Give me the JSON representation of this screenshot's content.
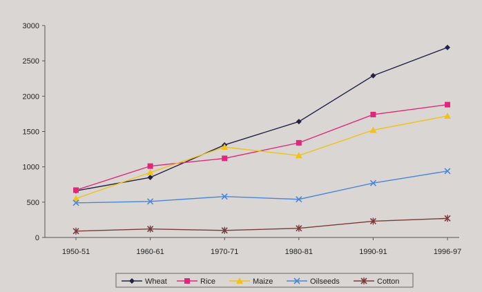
{
  "chart_data": {
    "type": "line",
    "categories": [
      "1950-51",
      "1960-61",
      "1970-71",
      "1980-81",
      "1990-91",
      "1996-97"
    ],
    "ylim": [
      0,
      3000
    ],
    "yticks": [
      0,
      500,
      1000,
      1500,
      2000,
      2500,
      3000
    ],
    "grid": false,
    "legend_position": "bottom",
    "series": [
      {
        "name": "Wheat",
        "color": "#222244",
        "marker": "diamond",
        "values": [
          660,
          850,
          1310,
          1640,
          2290,
          2690
        ]
      },
      {
        "name": "Rice",
        "color": "#e0287a",
        "marker": "square",
        "values": [
          670,
          1010,
          1120,
          1340,
          1740,
          1880
        ]
      },
      {
        "name": "Maize",
        "color": "#f0c21a",
        "marker": "triangle",
        "values": [
          550,
          920,
          1280,
          1160,
          1520,
          1720
        ]
      },
      {
        "name": "Oilseeds",
        "color": "#4a86d8",
        "marker": "x",
        "values": [
          490,
          510,
          580,
          540,
          770,
          940
        ]
      },
      {
        "name": "Cotton",
        "color": "#7a3a3a",
        "marker": "asterisk",
        "values": [
          90,
          120,
          100,
          130,
          230,
          270
        ]
      }
    ]
  }
}
